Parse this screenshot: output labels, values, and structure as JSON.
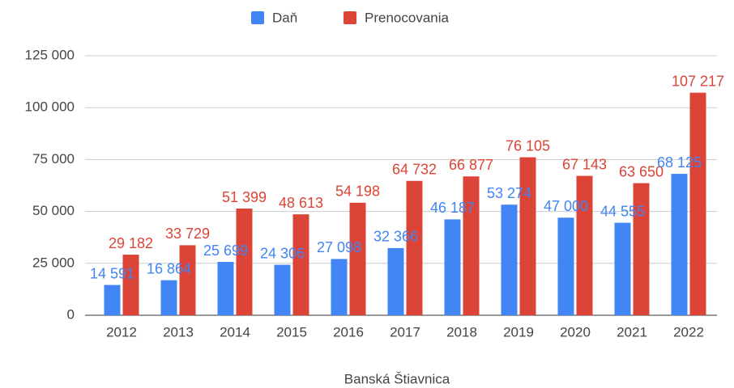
{
  "chart_data": {
    "type": "bar",
    "x_label": "Banská Štiavnica",
    "categories": [
      "2012",
      "2013",
      "2014",
      "2015",
      "2016",
      "2017",
      "2018",
      "2019",
      "2020",
      "2021",
      "2022"
    ],
    "series": [
      {
        "name": "Daň",
        "color": "#4285f4",
        "values": [
          14591,
          16864,
          25699,
          24306,
          27098,
          32366,
          46187,
          53274,
          47000,
          44555,
          68125
        ],
        "value_labels": [
          "14 591",
          "16 864",
          "25 699",
          "24 306",
          "27 098",
          "32 366",
          "46 187",
          "53 274",
          "47 000",
          "44 555",
          "68 125"
        ]
      },
      {
        "name": "Prenocovania",
        "color": "#db4437",
        "values": [
          29182,
          33729,
          51399,
          48613,
          54198,
          64732,
          66877,
          76105,
          67143,
          63650,
          107217
        ],
        "value_labels": [
          "29 182",
          "33 729",
          "51 399",
          "48 613",
          "54 198",
          "64 732",
          "66 877",
          "76 105",
          "67 143",
          "63 650",
          "107 217"
        ]
      }
    ],
    "ylim": [
      0,
      125000
    ],
    "yticks": [
      0,
      {
        "value": 25000,
        "label": "25 000"
      },
      {
        "value": 50000,
        "label": "50 000"
      },
      {
        "value": 75000,
        "label": "75 000"
      },
      {
        "value": 100000,
        "label": "100 000"
      },
      {
        "value": 125000,
        "label": "125 000"
      }
    ],
    "grid": true,
    "legend": "top"
  }
}
